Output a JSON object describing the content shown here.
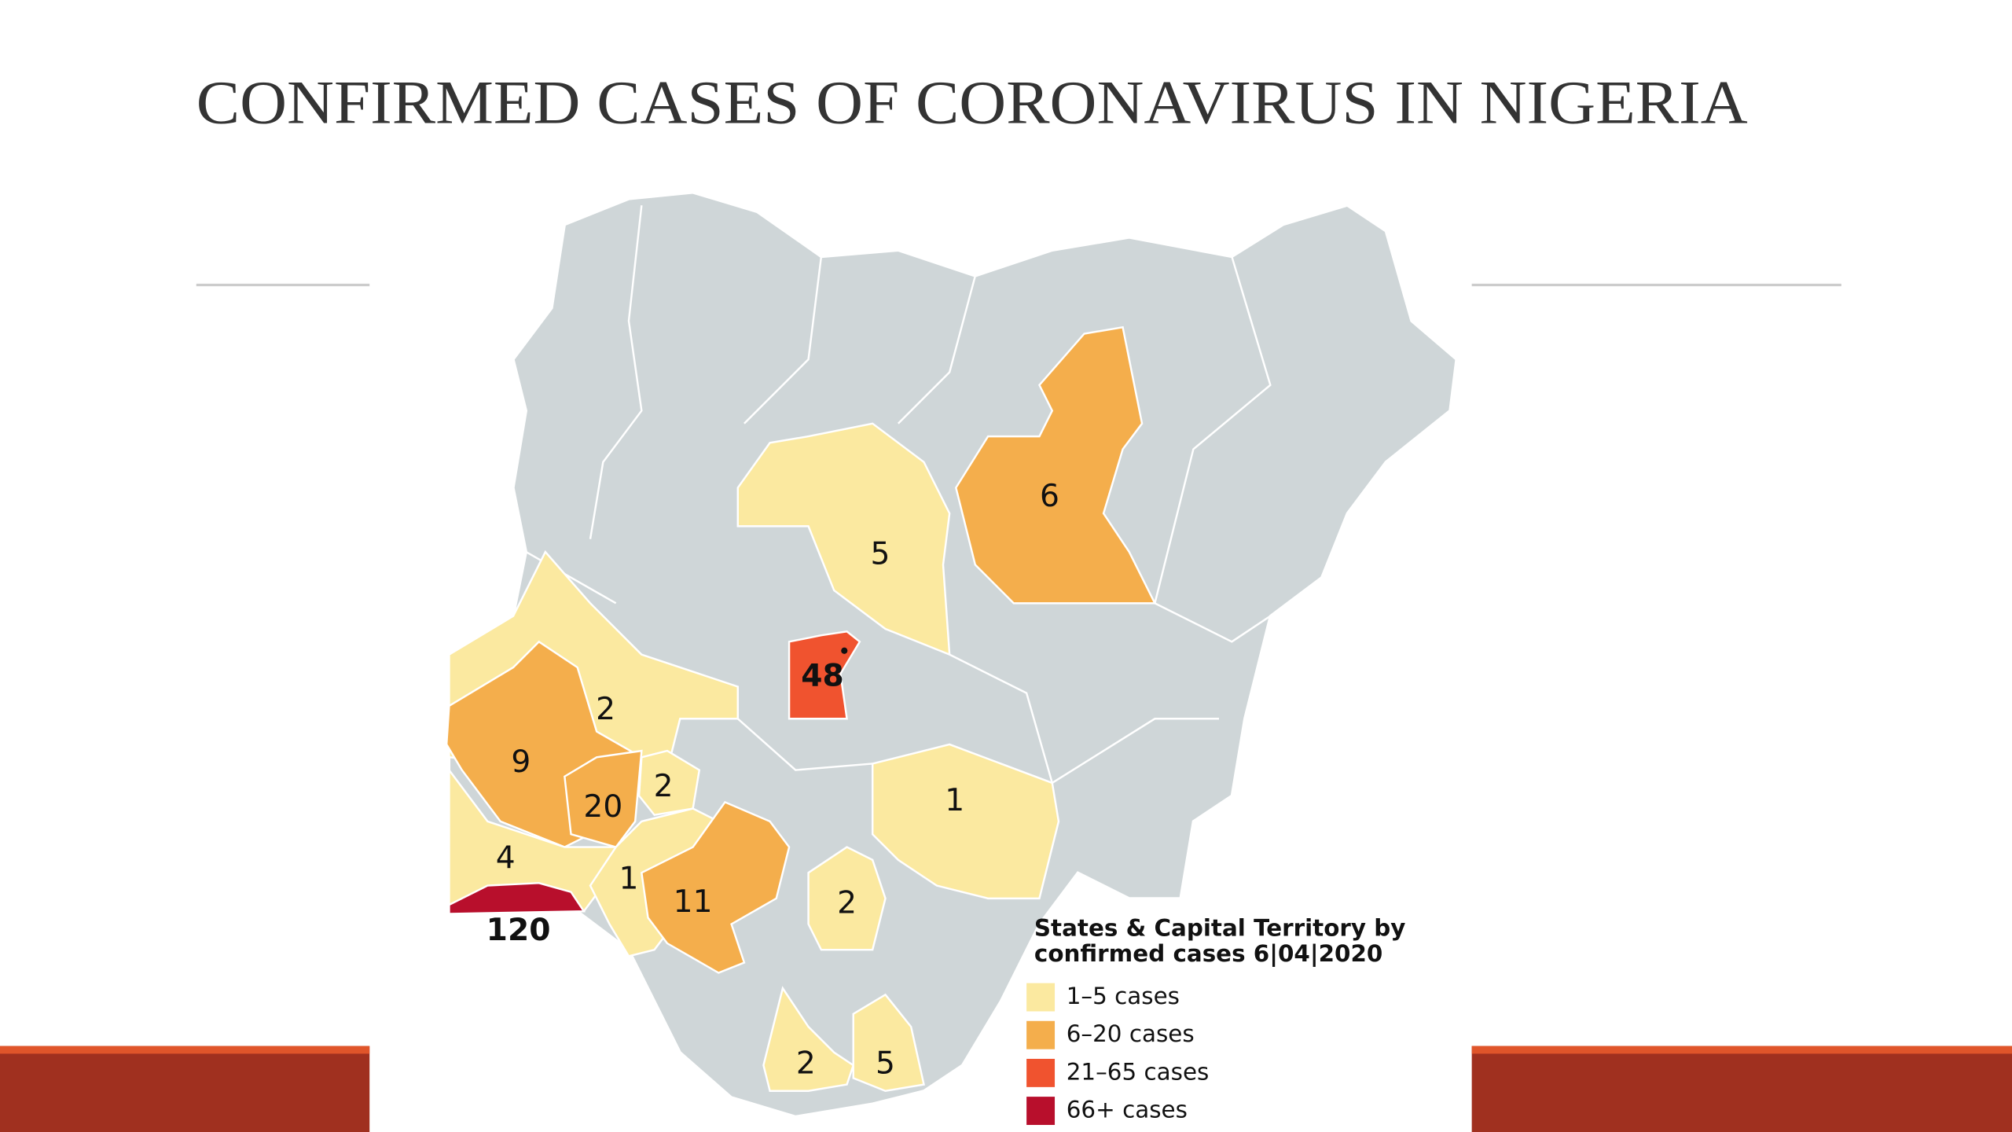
{
  "title": "CONFIRMED CASES OF CORONAVIRUS IN NIGERIA",
  "legend": {
    "title": [
      "States & Capital Territory by",
      "confirmed cases 6|04|2020"
    ],
    "items": [
      {
        "label": "1–5 cases",
        "color": "#fbe9a0"
      },
      {
        "label": "6–20 cases",
        "color": "#f4ae4c"
      },
      {
        "label": "21–65 cases",
        "color": "#f0532f"
      },
      {
        "label": "66+ cases",
        "color": "#b80f2c"
      }
    ]
  },
  "regions": [
    {
      "value": 6,
      "color": "#f4ae4c"
    },
    {
      "value": 5,
      "color": "#fbe9a0"
    },
    {
      "value": 48,
      "color": "#f0532f"
    },
    {
      "value": 2,
      "color": "#fbe9a0"
    },
    {
      "value": 9,
      "color": "#f4ae4c"
    },
    {
      "value": 20,
      "color": "#f4ae4c"
    },
    {
      "value": 2,
      "color": "#fbe9a0"
    },
    {
      "value": 4,
      "color": "#fbe9a0"
    },
    {
      "value": 120,
      "color": "#b80f2c"
    },
    {
      "value": 1,
      "color": "#fbe9a0"
    },
    {
      "value": 11,
      "color": "#f4ae4c"
    },
    {
      "value": 1,
      "color": "#fbe9a0"
    },
    {
      "value": 2,
      "color": "#fbe9a0"
    },
    {
      "value": 2,
      "color": "#fbe9a0"
    },
    {
      "value": 5,
      "color": "#fbe9a0"
    }
  ]
}
